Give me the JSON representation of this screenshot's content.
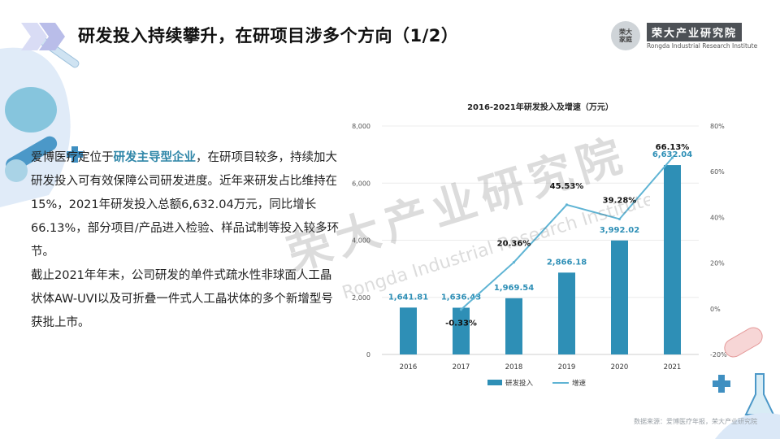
{
  "header": {
    "title": "研发投入持续攀升，在研项目涉多个方向（1/2）"
  },
  "logo": {
    "seal_text": "荣大家庭",
    "cn_name": "荣大产业研究院",
    "en_name": "Rongda Industrial Research Institute"
  },
  "body": {
    "p1_pre": "爱博医疗定位于",
    "p1_highlight": "研发主导型企业",
    "p1_post": "，在研项目较多，持续加大研发投入可有效保障公司研发进度。近年来研发占比维持在15%，2021年研发投入总额6,632.04万元，同比增长66.13%，部分项目/产品进入检验、样品试制等投入较多环节。",
    "p2": "截止2021年年末，公司研发的单件式疏水性非球面人工晶状体AW-UVI以及可折叠一件式人工晶状体的多个新增型号获批上市。"
  },
  "chart_data": {
    "type": "bar",
    "title": "2016-2021年研发投入及增速（万元）",
    "categories": [
      "2016",
      "2017",
      "2018",
      "2019",
      "2020",
      "2021"
    ],
    "series": [
      {
        "name": "研发投入",
        "type": "bar",
        "axis": "left",
        "values": [
          1641.81,
          1636.43,
          1969.54,
          2866.18,
          3992.02,
          6632.04
        ],
        "labels": [
          "1,641.81",
          "1,636.43",
          "1,969.54",
          "2,866.18",
          "3,992.02",
          "6,632.04"
        ]
      },
      {
        "name": "增速",
        "type": "line",
        "axis": "right",
        "values": [
          null,
          -0.33,
          20.36,
          45.53,
          39.28,
          66.13
        ],
        "labels": [
          "",
          "-0.33%",
          "20.36%",
          "45.53%",
          "39.28%",
          "66.13%"
        ]
      }
    ],
    "y_left": {
      "min": 0,
      "max": 8000,
      "ticks": [
        0,
        2000,
        4000,
        6000,
        8000
      ],
      "tick_labels": [
        "0",
        "2,000",
        "4,000",
        "6,000",
        "8,000"
      ]
    },
    "y_right": {
      "min": -20,
      "max": 80,
      "ticks": [
        -20,
        0,
        20,
        40,
        60,
        80
      ],
      "tick_labels": [
        "-20%",
        "0%",
        "20%",
        "40%",
        "60%",
        "80%"
      ]
    },
    "legend": {
      "position": "bottom",
      "items": [
        "研发投入",
        "增速"
      ]
    },
    "gridlines": true
  },
  "watermark": {
    "cn": "荣大产业研究院",
    "en": "Rongda Industrial Research Institute"
  },
  "footer": {
    "source": "数据来源：爱博医疗年报，荣大产业研究院"
  },
  "colors": {
    "bar": "#2e8fb6",
    "line": "#5fb4d4",
    "accent": "#2f86a8",
    "title": "#111111"
  }
}
